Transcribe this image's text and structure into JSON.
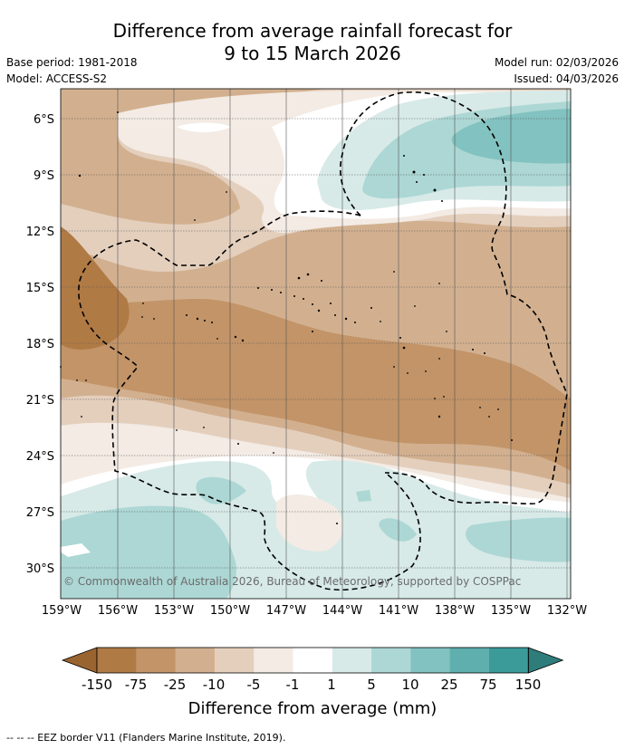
{
  "title_line1": "Difference from average rainfall forecast for",
  "title_line2": "9 to 15 March 2026",
  "base_period": "Base period: 1981-2018",
  "model": "Model: ACCESS-S2",
  "model_run": "Model run: 02/03/2026",
  "issued": "Issued: 04/03/2026",
  "copyright": "© Commonwealth of Australia 2026, Bureau of Meteorology, supported by COSPPac",
  "lat_labels": [
    "6°S",
    "9°S",
    "12°S",
    "15°S",
    "18°S",
    "21°S",
    "24°S",
    "27°S",
    "30°S"
  ],
  "lon_labels": [
    "159°W",
    "156°W",
    "153°W",
    "150°W",
    "147°W",
    "144°W",
    "141°W",
    "138°W",
    "135°W",
    "132°W"
  ],
  "colorbar": {
    "labels": [
      "-150",
      "-75",
      "-25",
      "-10",
      "-5",
      "-1",
      "1",
      "5",
      "10",
      "25",
      "75",
      "150"
    ],
    "title": "Difference from average (mm)",
    "colors": [
      "#9a6431",
      "#b07a45",
      "#c29468",
      "#d2b08f",
      "#e4cfbd",
      "#f3ebe4",
      "#ffffff",
      "#d7eae8",
      "#acd7d4",
      "#82c2c0",
      "#5eafad",
      "#3b9b98",
      "#2f7d7b"
    ]
  },
  "footer": "--  --  -- EEZ border V11 (Flanders Marine Institute, 2019)."
}
